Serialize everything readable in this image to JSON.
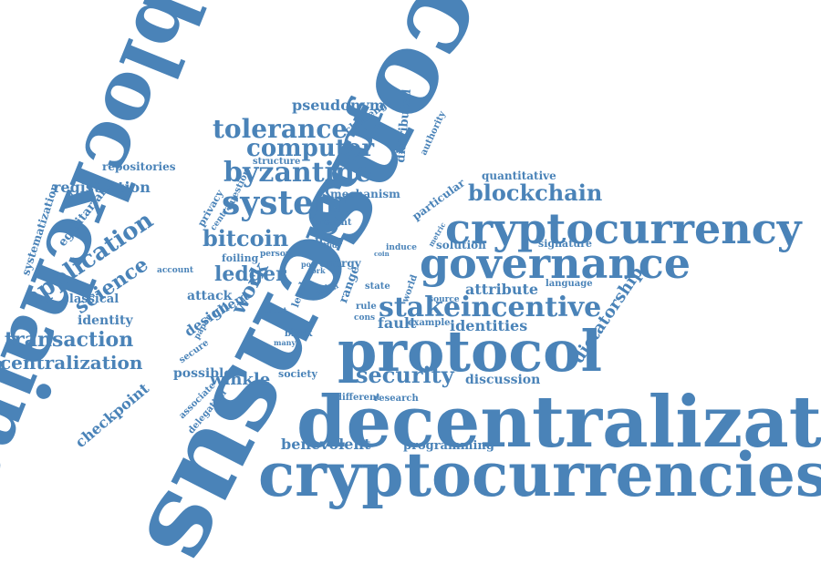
{
  "color": "#4a83b8",
  "words": [
    "consensus",
    "blockchains",
    "decentralization",
    "cryptocurrencies",
    "protocol",
    "cryptocurrency",
    "governance",
    "proof",
    "blockchain",
    "system",
    "byzantine",
    "tolerance",
    "computer",
    "stakeincentive",
    "security",
    "bitcoin",
    "ledger",
    "application",
    "science",
    "transaction",
    "centralization",
    "checkpoint",
    "work",
    "pseudonym",
    "registration",
    "identities",
    "dictatorship",
    "attribute",
    "identity",
    "discussion",
    "benevolent",
    "programming",
    "winkle",
    "possible",
    "repositories",
    "systematization",
    "egalitarian",
    "classical",
    "mechanism",
    "quantitative",
    "particular",
    "solution",
    "signature",
    "language",
    "fault",
    "design",
    "client",
    "attack",
    "distributed",
    "challenge",
    "authority",
    "structure",
    "question",
    "privacy",
    "central",
    "present",
    "user",
    "energy",
    "foiling",
    "person",
    "account",
    "level",
    "trust",
    "paper",
    "range",
    "state",
    "induce",
    "world",
    "metric",
    "society",
    "different",
    "research",
    "associate",
    "delegation",
    "secure",
    "example",
    "source",
    "rule",
    "cons",
    "fork",
    "fail",
    "real",
    "open",
    "coin",
    "study",
    "many",
    "block",
    "pow"
  ]
}
